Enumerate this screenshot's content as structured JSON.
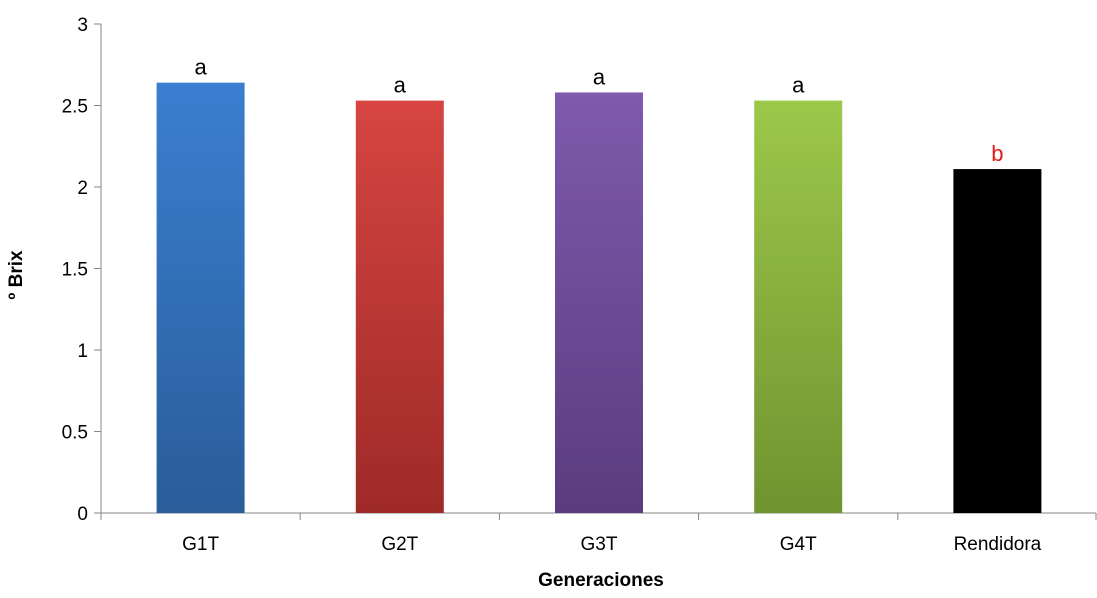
{
  "chart_data": {
    "type": "bar",
    "title": "",
    "xlabel": "Generaciones",
    "ylabel": "º Brix",
    "categories": [
      "G1T",
      "G2T",
      "G3T",
      "G4T",
      "Rendidora"
    ],
    "values": [
      2.64,
      2.53,
      2.58,
      2.53,
      2.11
    ],
    "data_labels": [
      "a",
      "a",
      "a",
      "a",
      "b"
    ],
    "data_label_colors": [
      "#000000",
      "#000000",
      "#000000",
      "#000000",
      "#e31a1c"
    ],
    "bar_colors": [
      {
        "top": "#3a7fd0",
        "bottom": "#2a5d9a"
      },
      {
        "top": "#d64541",
        "bottom": "#9e2a28"
      },
      {
        "top": "#7f5aad",
        "bottom": "#5a3c7e"
      },
      {
        "top": "#9cc84a",
        "bottom": "#6f9430"
      },
      {
        "top": "#000000",
        "bottom": "#000000"
      }
    ],
    "ylim": [
      0,
      3
    ],
    "yticks": [
      0,
      0.5,
      1,
      1.5,
      2,
      2.5,
      3
    ],
    "ytick_labels": [
      "0",
      "0.5",
      "1",
      "1.5",
      "2",
      "2.5",
      "3"
    ],
    "grid": false,
    "legend": "none"
  }
}
